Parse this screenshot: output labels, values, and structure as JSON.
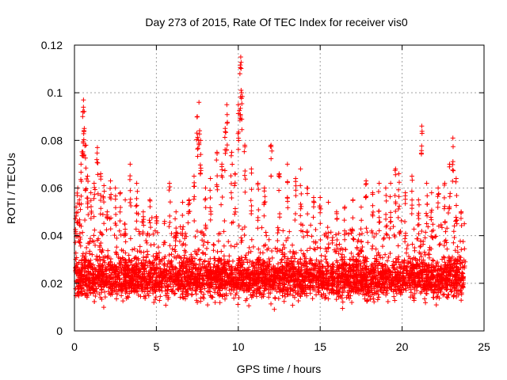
{
  "chart_data": {
    "type": "scatter",
    "title": "Day 273 of 2015, Rate Of TEC Index for receiver vis0",
    "xlabel": "GPS time / hours",
    "ylabel": "ROTI / TECUs",
    "xlim": [
      0,
      25
    ],
    "ylim": [
      0,
      0.12
    ],
    "x_ticks": [
      "0",
      "5",
      "10",
      "15",
      "20",
      "25"
    ],
    "y_ticks": [
      "0",
      "0.02",
      "0.04",
      "0.06",
      "0.08",
      "0.1",
      "0.12"
    ],
    "x_tick_values": [
      0,
      5,
      10,
      15,
      20,
      25
    ],
    "y_tick_values": [
      0,
      0.02,
      0.04,
      0.06,
      0.08,
      0.1,
      0.12
    ],
    "grid": true,
    "legend": "none",
    "marker": "plus",
    "color": "#ff0000",
    "series": [
      {
        "points": [
          [
            0.1,
            0.052
          ],
          [
            0.2,
            0.06
          ],
          [
            0.3,
            0.055
          ],
          [
            0.4,
            0.07
          ],
          [
            0.5,
            0.09
          ],
          [
            0.55,
            0.097
          ],
          [
            0.6,
            0.085
          ],
          [
            0.7,
            0.078
          ],
          [
            0.8,
            0.065
          ],
          [
            1.0,
            0.058
          ],
          [
            1.2,
            0.062
          ],
          [
            1.4,
            0.077
          ],
          [
            1.6,
            0.066
          ],
          [
            1.8,
            0.061
          ],
          [
            2.0,
            0.05
          ],
          [
            2.2,
            0.063
          ],
          [
            2.5,
            0.06
          ],
          [
            2.8,
            0.058
          ],
          [
            3.1,
            0.055
          ],
          [
            3.4,
            0.07
          ],
          [
            3.8,
            0.062
          ],
          [
            4.2,
            0.05
          ],
          [
            4.6,
            0.055
          ],
          [
            5.0,
            0.048
          ],
          [
            5.5,
            0.046
          ],
          [
            5.8,
            0.062
          ],
          [
            6.2,
            0.05
          ],
          [
            6.6,
            0.054
          ],
          [
            7.0,
            0.055
          ],
          [
            7.3,
            0.065
          ],
          [
            7.5,
            0.09
          ],
          [
            7.6,
            0.096
          ],
          [
            7.7,
            0.08
          ],
          [
            8.0,
            0.06
          ],
          [
            8.3,
            0.064
          ],
          [
            8.7,
            0.075
          ],
          [
            9.0,
            0.07
          ],
          [
            9.2,
            0.085
          ],
          [
            9.3,
            0.095
          ],
          [
            9.6,
            0.075
          ],
          [
            9.8,
            0.066
          ],
          [
            10.0,
            0.095
          ],
          [
            10.1,
            0.108
          ],
          [
            10.15,
            0.115
          ],
          [
            10.2,
            0.1
          ],
          [
            10.4,
            0.078
          ],
          [
            10.8,
            0.068
          ],
          [
            11.2,
            0.062
          ],
          [
            11.6,
            0.06
          ],
          [
            12.0,
            0.078
          ],
          [
            12.5,
            0.066
          ],
          [
            13.0,
            0.07
          ],
          [
            13.5,
            0.064
          ],
          [
            13.8,
            0.068
          ],
          [
            14.2,
            0.06
          ],
          [
            14.6,
            0.056
          ],
          [
            15.0,
            0.056
          ],
          [
            15.5,
            0.054
          ],
          [
            16.0,
            0.05
          ],
          [
            16.5,
            0.052
          ],
          [
            17.0,
            0.055
          ],
          [
            17.5,
            0.052
          ],
          [
            17.8,
            0.063
          ],
          [
            18.2,
            0.058
          ],
          [
            18.6,
            0.062
          ],
          [
            19.0,
            0.06
          ],
          [
            19.3,
            0.062
          ],
          [
            19.6,
            0.068
          ],
          [
            19.8,
            0.066
          ],
          [
            20.2,
            0.058
          ],
          [
            20.6,
            0.065
          ],
          [
            21.0,
            0.055
          ],
          [
            21.2,
            0.086
          ],
          [
            21.5,
            0.062
          ],
          [
            21.8,
            0.058
          ],
          [
            22.2,
            0.06
          ],
          [
            22.6,
            0.062
          ],
          [
            22.9,
            0.07
          ],
          [
            23.1,
            0.081
          ],
          [
            23.3,
            0.064
          ],
          [
            23.6,
            0.05
          ],
          [
            23.8,
            0.045
          ]
        ]
      }
    ]
  }
}
